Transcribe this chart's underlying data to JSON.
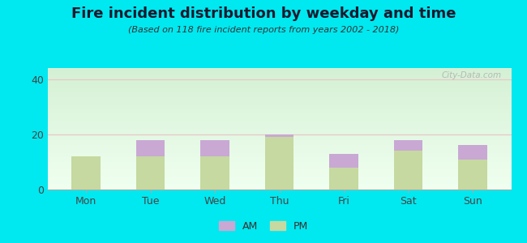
{
  "title": "Fire incident distribution by weekday and time",
  "subtitle": "(Based on 118 fire incident reports from years 2002 - 2018)",
  "categories": [
    "Mon",
    "Tue",
    "Wed",
    "Thu",
    "Fri",
    "Sat",
    "Sun"
  ],
  "pm_values": [
    12,
    12,
    12,
    19,
    8,
    14,
    11
  ],
  "am_values": [
    0,
    6,
    6,
    1,
    5,
    4,
    5
  ],
  "am_color": "#c9a8d4",
  "pm_color": "#c5d9a0",
  "background_outer": "#00e8f0",
  "background_plot_top": "#d4f0d4",
  "background_plot_bottom": "#f0fff0",
  "ylim": [
    0,
    44
  ],
  "yticks": [
    0,
    20,
    40
  ],
  "bar_width": 0.45,
  "title_fontsize": 13,
  "subtitle_fontsize": 8,
  "tick_fontsize": 9,
  "legend_fontsize": 9,
  "grid_color": "#e8c8c8",
  "watermark": "City-Data.com"
}
